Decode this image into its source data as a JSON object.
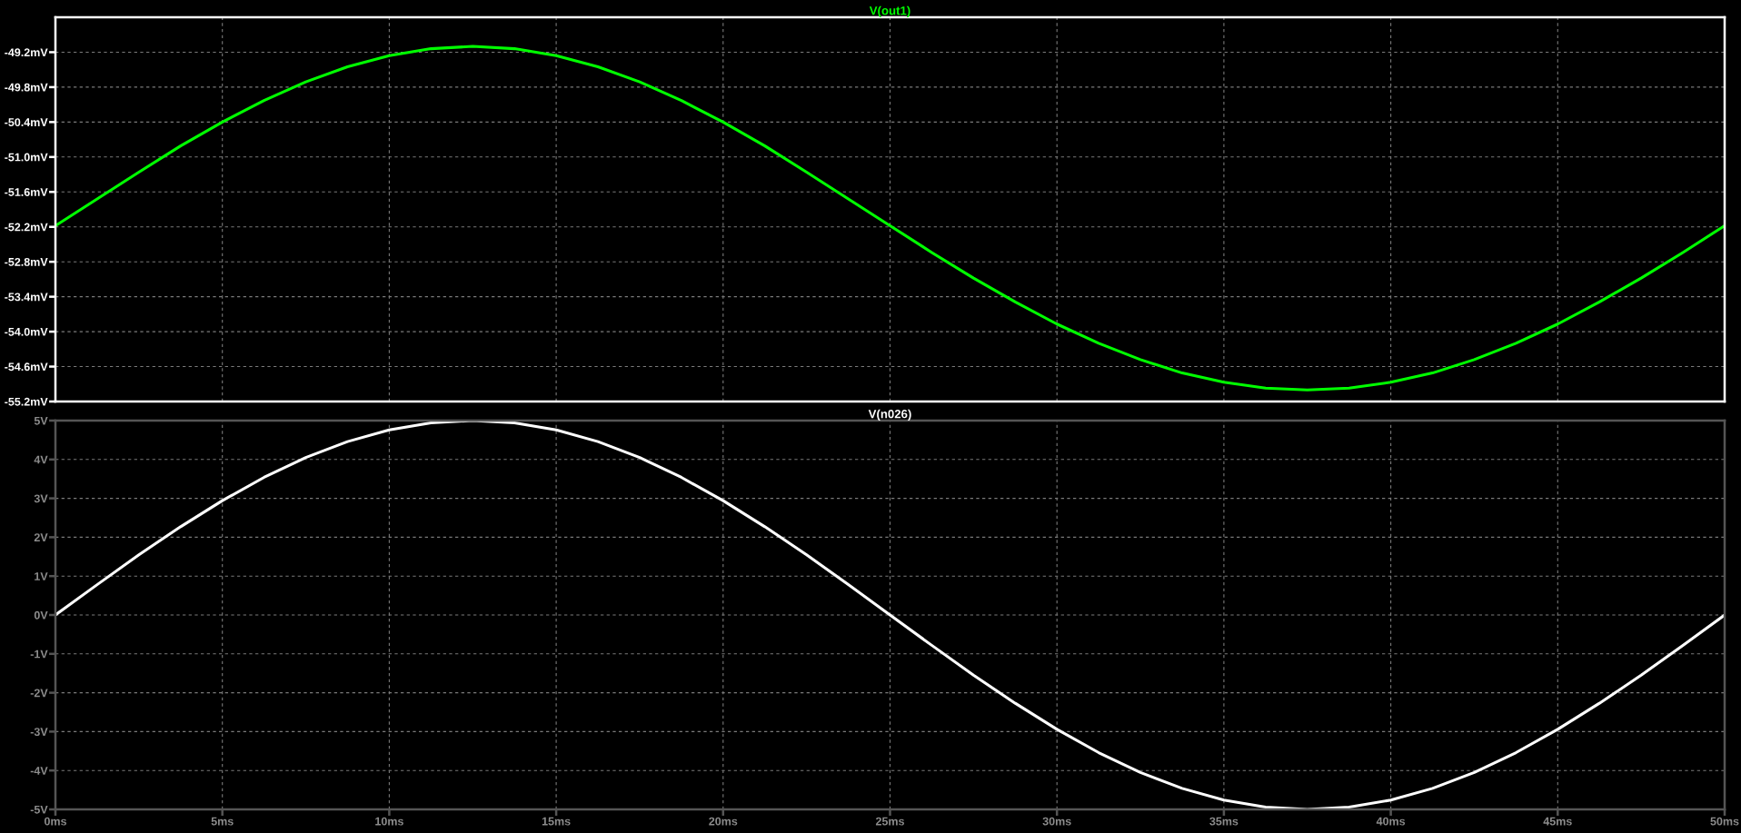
{
  "chart_data": [
    {
      "type": "line",
      "title": "V(out1)",
      "x": [
        0,
        1.25,
        2.5,
        3.75,
        5,
        6.25,
        7.5,
        8.75,
        10,
        11.25,
        12.5,
        13.75,
        15,
        16.25,
        17.5,
        18.75,
        20,
        21.25,
        22.5,
        23.75,
        25,
        26.25,
        27.5,
        28.75,
        30,
        31.25,
        32.5,
        33.75,
        35,
        36.25,
        37.5,
        38.75,
        40,
        41.25,
        42.5,
        43.75,
        45,
        46.25,
        47.5,
        48.75,
        50
      ],
      "series": [
        {
          "color": "#00ff00",
          "values": [
            -52.18,
            -51.72,
            -51.26,
            -50.81,
            -50.4,
            -50.03,
            -49.71,
            -49.45,
            -49.26,
            -49.14,
            -49.1,
            -49.14,
            -49.26,
            -49.45,
            -49.71,
            -50.03,
            -50.4,
            -50.81,
            -51.26,
            -51.72,
            -52.18,
            -52.64,
            -53.08,
            -53.49,
            -53.87,
            -54.2,
            -54.48,
            -54.71,
            -54.87,
            -54.97,
            -55.0,
            -54.97,
            -54.87,
            -54.71,
            -54.48,
            -54.2,
            -53.87,
            -53.49,
            -53.08,
            -52.64,
            -52.18
          ]
        }
      ],
      "xlim": [
        0,
        50
      ],
      "xticks": [
        {
          "value": 0,
          "label": null
        },
        {
          "value": 5,
          "label": null
        },
        {
          "value": 10,
          "label": null
        },
        {
          "value": 15,
          "label": null
        },
        {
          "value": 20,
          "label": null
        },
        {
          "value": 25,
          "label": null
        },
        {
          "value": 30,
          "label": null
        },
        {
          "value": 35,
          "label": null
        },
        {
          "value": 40,
          "label": null
        },
        {
          "value": 45,
          "label": null
        },
        {
          "value": 50,
          "label": null
        }
      ],
      "ylim": [
        -55.2,
        -48.6
      ],
      "yticks": [
        {
          "value": -55.2,
          "label": "-55.2mV"
        },
        {
          "value": -54.6,
          "label": "-54.6mV"
        },
        {
          "value": -54.0,
          "label": "-54.0mV"
        },
        {
          "value": -53.4,
          "label": "-53.4mV"
        },
        {
          "value": -52.8,
          "label": "-52.8mV"
        },
        {
          "value": -52.2,
          "label": "-52.2mV"
        },
        {
          "value": -51.6,
          "label": "-51.6mV"
        },
        {
          "value": -51.0,
          "label": "-51.0mV"
        },
        {
          "value": -50.4,
          "label": "-50.4mV"
        },
        {
          "value": -49.8,
          "label": "-49.8mV"
        },
        {
          "value": -49.2,
          "label": "-49.2mV"
        }
      ],
      "tick_labels": "y",
      "grid": true
    },
    {
      "type": "line",
      "title": "V(n026)",
      "x": [
        0,
        1.25,
        2.5,
        3.75,
        5,
        6.25,
        7.5,
        8.75,
        10,
        11.25,
        12.5,
        13.75,
        15,
        16.25,
        17.5,
        18.75,
        20,
        21.25,
        22.5,
        23.75,
        25,
        26.25,
        27.5,
        28.75,
        30,
        31.25,
        32.5,
        33.75,
        35,
        36.25,
        37.5,
        38.75,
        40,
        41.25,
        42.5,
        43.75,
        45,
        46.25,
        47.5,
        48.75,
        50
      ],
      "series": [
        {
          "color": "#ffffff",
          "values": [
            0,
            0.78,
            1.55,
            2.27,
            2.94,
            3.54,
            4.05,
            4.46,
            4.76,
            4.94,
            5.0,
            4.94,
            4.76,
            4.46,
            4.05,
            3.54,
            2.94,
            2.27,
            1.55,
            0.78,
            0,
            -0.78,
            -1.55,
            -2.27,
            -2.94,
            -3.54,
            -4.05,
            -4.46,
            -4.76,
            -4.94,
            -5.0,
            -4.94,
            -4.76,
            -4.46,
            -4.05,
            -3.54,
            -2.94,
            -2.27,
            -1.55,
            -0.78,
            0
          ]
        }
      ],
      "xlim": [
        0,
        50
      ],
      "xticks": [
        {
          "value": 0,
          "label": "0ms"
        },
        {
          "value": 5,
          "label": "5ms"
        },
        {
          "value": 10,
          "label": "10ms"
        },
        {
          "value": 15,
          "label": "15ms"
        },
        {
          "value": 20,
          "label": "20ms"
        },
        {
          "value": 25,
          "label": "25ms"
        },
        {
          "value": 30,
          "label": "30ms"
        },
        {
          "value": 35,
          "label": "35ms"
        },
        {
          "value": 40,
          "label": "40ms"
        },
        {
          "value": 45,
          "label": "45ms"
        },
        {
          "value": 50,
          "label": "50ms"
        }
      ],
      "ylim": [
        -5,
        5
      ],
      "yticks": [
        {
          "value": -5,
          "label": "-5V"
        },
        {
          "value": -4,
          "label": "-4V"
        },
        {
          "value": -3,
          "label": "-3V"
        },
        {
          "value": -2,
          "label": "-2V"
        },
        {
          "value": -1,
          "label": "-1V"
        },
        {
          "value": 0,
          "label": "0V"
        },
        {
          "value": 1,
          "label": "1V"
        },
        {
          "value": 2,
          "label": "2V"
        },
        {
          "value": 3,
          "label": "3V"
        },
        {
          "value": 4,
          "label": "4V"
        },
        {
          "value": 5,
          "label": "5V"
        }
      ],
      "grid": true
    }
  ]
}
